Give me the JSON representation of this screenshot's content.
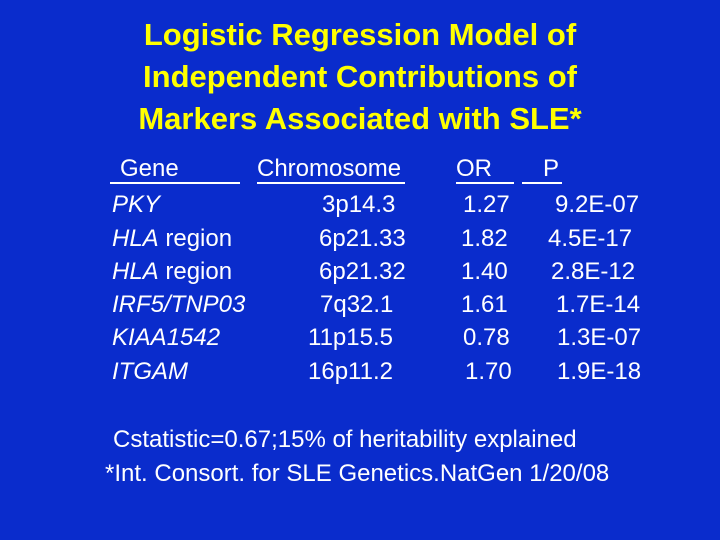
{
  "title": {
    "lines": [
      "Logistic Regression Model of",
      "Independent Contributions of",
      "Markers Associated with SLE*"
    ]
  },
  "table": {
    "headers": {
      "gene": "Gene",
      "chromosome": "Chromosome",
      "or": "OR",
      "p": "P"
    },
    "rows": [
      {
        "gene_italic": "PKY",
        "gene_suffix": "",
        "chromosome": "3p14.3",
        "or": "1.27",
        "p": "9.2E-07"
      },
      {
        "gene_italic": "HLA",
        "gene_suffix": " region",
        "chromosome": "6p21.33",
        "or": "1.82",
        "p": "4.5E-17"
      },
      {
        "gene_italic": "HLA",
        "gene_suffix": " region",
        "chromosome": "6p21.32",
        "or": "1.40",
        "p": "2.8E-12"
      },
      {
        "gene_italic": "IRF5/TNP03",
        "gene_suffix": "",
        "chromosome": "7q32.1",
        "or": "1.61",
        "p": "1.7E-14"
      },
      {
        "gene_italic": "KIAA1542",
        "gene_suffix": "",
        "chromosome": "11p15.5",
        "or": "0.78",
        "p": "1.3E-07"
      },
      {
        "gene_italic": "ITGAM",
        "gene_suffix": "",
        "chromosome": "16p11.2",
        "or": "1.70",
        "p": "1.9E-18"
      }
    ]
  },
  "footer": {
    "statistic": "Cstatistic=0.67;15% of heritability explained",
    "citation": "*Int. Consort. for SLE Genetics.NatGen 1/20/08"
  },
  "colors": {
    "background": "#0a2ccc",
    "title": "#ffff00",
    "text": "#ffffff"
  }
}
